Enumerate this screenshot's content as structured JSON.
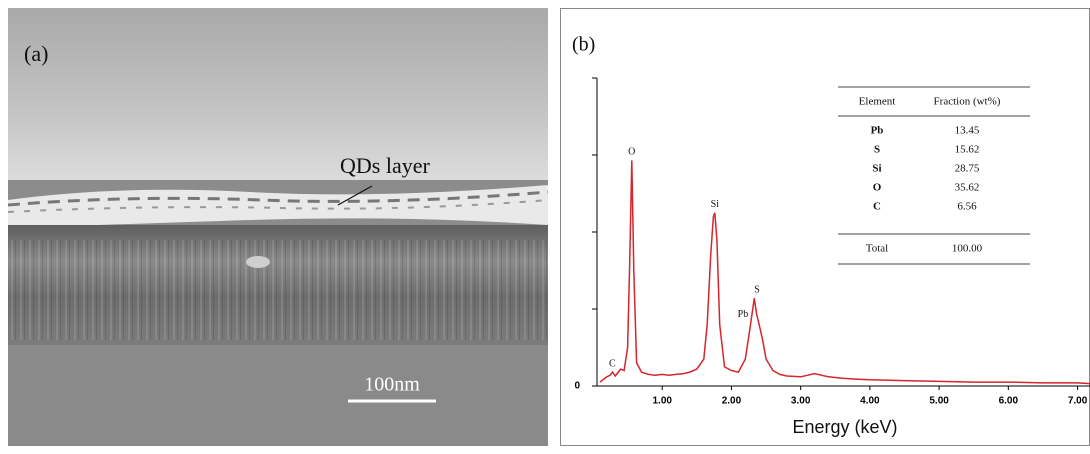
{
  "panel_a": {
    "label": "(a)",
    "annotation": "QDs layer",
    "scale_bar": "100nm"
  },
  "panel_b": {
    "label": "(b)",
    "table": {
      "header": [
        "Element",
        "Fraction (wt%)"
      ],
      "rows": [
        [
          "Pb",
          "13.45"
        ],
        [
          "S",
          "15.62"
        ],
        [
          "Si",
          "28.75"
        ],
        [
          "O",
          "35.62"
        ],
        [
          "C",
          "6.56"
        ]
      ],
      "total": [
        "Total",
        "100.00"
      ]
    }
  },
  "chart_data": {
    "type": "line",
    "x_label": "Energy (keV)",
    "color": "#d4262c",
    "x": [
      0.1,
      0.2,
      0.25,
      0.28,
      0.32,
      0.4,
      0.45,
      0.5,
      0.53,
      0.56,
      0.59,
      0.63,
      0.7,
      0.8,
      0.9,
      1.0,
      1.1,
      1.2,
      1.3,
      1.4,
      1.5,
      1.6,
      1.65,
      1.7,
      1.74,
      1.76,
      1.79,
      1.83,
      1.9,
      2.0,
      2.1,
      2.2,
      2.26,
      2.3,
      2.33,
      2.36,
      2.4,
      2.45,
      2.5,
      2.6,
      2.7,
      2.8,
      3.0,
      3.2,
      3.4,
      3.6,
      3.8,
      4.0,
      4.5,
      5.0,
      5.5,
      6.0,
      6.5,
      7.0,
      7.2
    ],
    "values": [
      0.05,
      0.12,
      0.14,
      0.18,
      0.13,
      0.22,
      0.2,
      0.5,
      1.6,
      2.93,
      1.5,
      0.3,
      0.18,
      0.15,
      0.14,
      0.15,
      0.14,
      0.15,
      0.16,
      0.18,
      0.22,
      0.35,
      0.8,
      1.7,
      2.2,
      2.25,
      1.9,
      0.8,
      0.25,
      0.2,
      0.18,
      0.35,
      0.7,
      0.95,
      1.14,
      0.95,
      0.8,
      0.6,
      0.35,
      0.2,
      0.15,
      0.13,
      0.12,
      0.16,
      0.12,
      0.1,
      0.09,
      0.08,
      0.07,
      0.06,
      0.05,
      0.05,
      0.04,
      0.04,
      0.03
    ],
    "peak_labels": [
      {
        "label": "C",
        "x": 0.28
      },
      {
        "label": "O",
        "x": 0.56
      },
      {
        "label": "Si",
        "x": 1.76
      },
      {
        "label": "Pb",
        "x": 2.3
      },
      {
        "label": "S",
        "x": 2.33
      }
    ],
    "xlim": [
      0,
      7.2
    ],
    "ylim": [
      0,
      4
    ],
    "xticks": [
      {
        "value": 1,
        "label": "1.00"
      },
      {
        "value": 2,
        "label": "2.00"
      },
      {
        "value": 3,
        "label": "3.00"
      },
      {
        "value": 4,
        "label": "4.00"
      },
      {
        "value": 5,
        "label": "5.00"
      },
      {
        "value": 6,
        "label": "6.00"
      },
      {
        "value": 7,
        "label": "7.00"
      }
    ],
    "yticks": [
      0
    ]
  }
}
